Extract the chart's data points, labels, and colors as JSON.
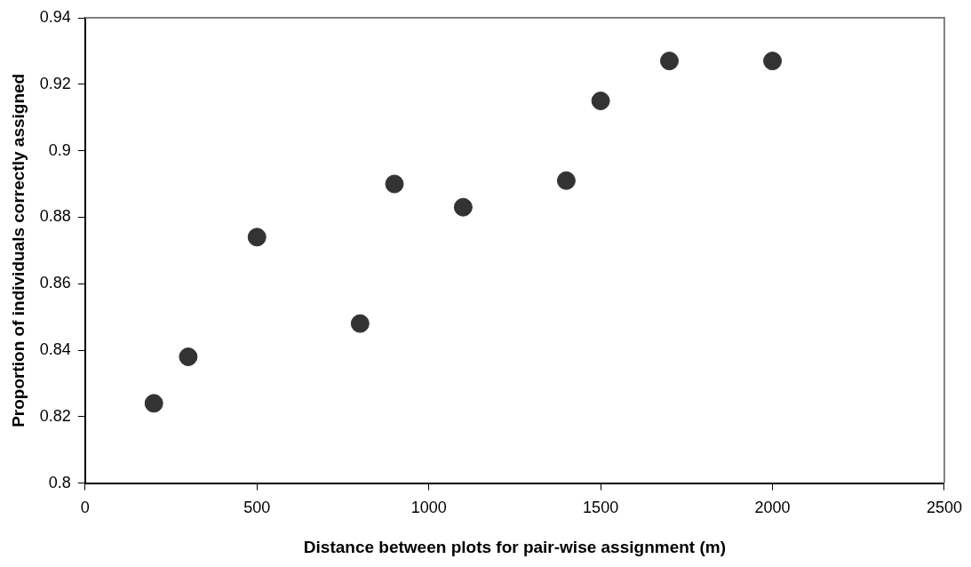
{
  "chart_data": {
    "type": "scatter",
    "xlabel": "Distance between plots for pair-wise assignment (m)",
    "ylabel": "Proportion of individuals correctly assigned",
    "x": [
      200,
      300,
      500,
      800,
      900,
      1100,
      1400,
      1500,
      1700,
      2000
    ],
    "values": [
      0.824,
      0.838,
      0.874,
      0.848,
      0.89,
      0.883,
      0.891,
      0.915,
      0.927,
      0.927
    ],
    "color": "#333333",
    "marker": "circle",
    "xlim": [
      0,
      2500
    ],
    "xticks": [
      0,
      500,
      1000,
      1500,
      2000,
      2500
    ],
    "ylim": [
      0.8,
      0.94
    ],
    "yticks": [
      {
        "value": 0.8,
        "label": "0.8"
      },
      {
        "value": 0.82,
        "label": "0.82"
      },
      {
        "value": 0.84,
        "label": "0.84"
      },
      {
        "value": 0.86,
        "label": "0.86"
      },
      {
        "value": 0.88,
        "label": "0.88"
      },
      {
        "value": 0.9,
        "label": "0.9"
      },
      {
        "value": 0.92,
        "label": "0.92"
      },
      {
        "value": 0.94,
        "label": "0.94"
      }
    ],
    "grid": false,
    "legend": false
  }
}
